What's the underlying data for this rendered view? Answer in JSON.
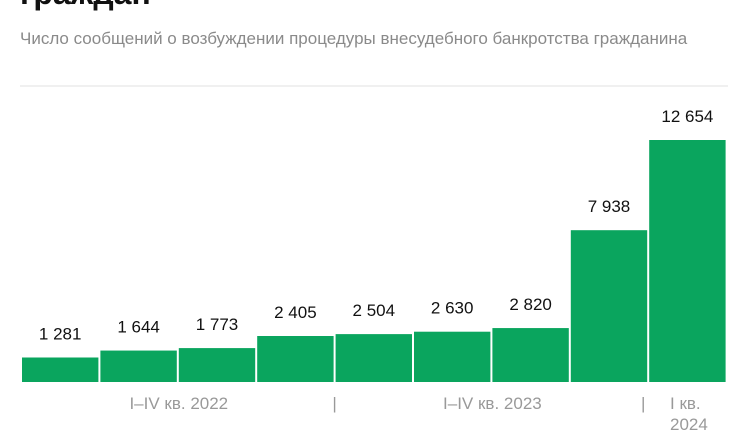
{
  "chart_data": {
    "type": "bar",
    "title": "граждан",
    "subtitle": "Число сообщений о возбуждении процедуры внесудебного банкротства гражданина",
    "values": [
      1281,
      1644,
      1773,
      2405,
      2504,
      2630,
      2820,
      7938,
      12654
    ],
    "value_labels": [
      "1 281",
      "1 644",
      "1 773",
      "2 405",
      "2 504",
      "2 630",
      "2 820",
      "7 938",
      "12 654"
    ],
    "group_labels": [
      "I–IV кв. 2022",
      "I–IV кв. 2023",
      "I кв. 2024"
    ],
    "separator": "|",
    "color": "#0aa55e"
  }
}
